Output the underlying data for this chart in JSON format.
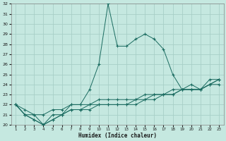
{
  "x": [
    1,
    2,
    3,
    4,
    5,
    6,
    7,
    8,
    9,
    10,
    11,
    12,
    13,
    14,
    15,
    16,
    17,
    18,
    19,
    20,
    21,
    22,
    23
  ],
  "line1": [
    22,
    21,
    21,
    20,
    21,
    21,
    22,
    22,
    23.5,
    26,
    32,
    27.8,
    27.8,
    28.5,
    29,
    28.5,
    27.5,
    25,
    23.5,
    24,
    23.5,
    24.5,
    24.5
  ],
  "line2": [
    22,
    21.5,
    21,
    21,
    21.5,
    21.5,
    22,
    22,
    22,
    22.5,
    22.5,
    22.5,
    22.5,
    22.5,
    23,
    23,
    23,
    23,
    23.5,
    23.5,
    23.5,
    24,
    24.5
  ],
  "line3": [
    22,
    21,
    20.5,
    20,
    20.5,
    21,
    21.5,
    21.5,
    22,
    22,
    22,
    22,
    22,
    22.5,
    22.5,
    23,
    23,
    23.5,
    23.5,
    23.5,
    23.5,
    24,
    24.5
  ],
  "line4": [
    22,
    21,
    20.5,
    20,
    20.5,
    21,
    21.5,
    21.5,
    21.5,
    22,
    22,
    22,
    22,
    22,
    22.5,
    22.5,
    23,
    23,
    23.5,
    23.5,
    23.5,
    24,
    24
  ],
  "bg_color": "#c5e8e0",
  "grid_color": "#a8cfc7",
  "line_color": "#1a6b60",
  "xlabel": "Humidex (Indice chaleur)",
  "ylim": [
    20,
    32
  ],
  "xlim": [
    0.5,
    23.5
  ],
  "yticks": [
    20,
    21,
    22,
    23,
    24,
    25,
    26,
    27,
    28,
    29,
    30,
    31,
    32
  ]
}
